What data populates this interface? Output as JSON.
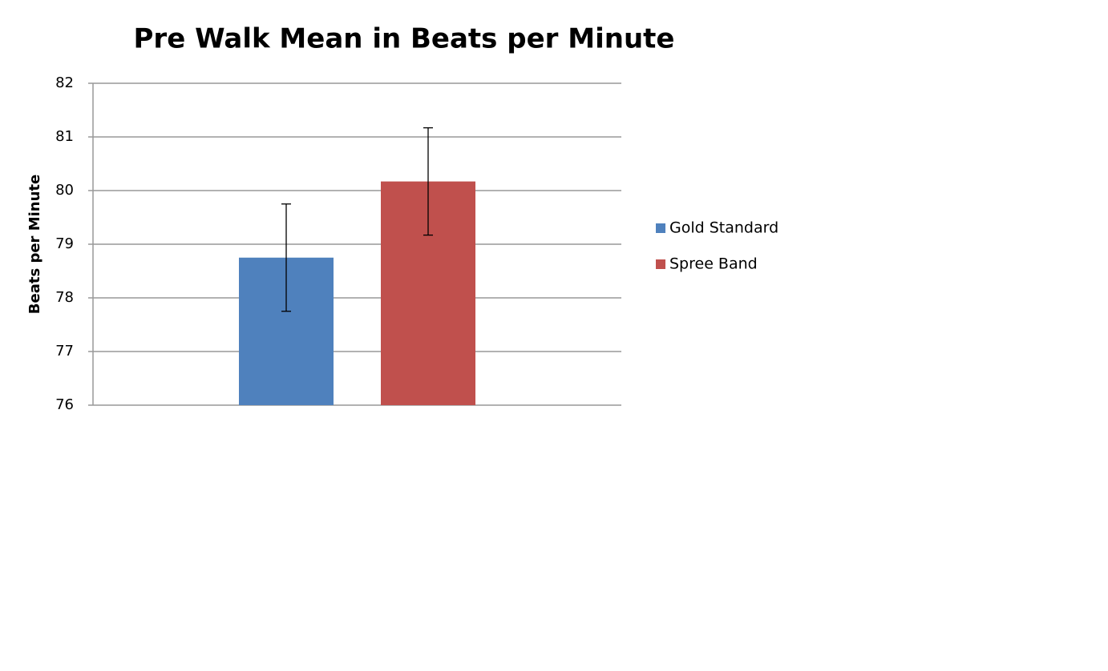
{
  "chart_data": {
    "type": "bar",
    "title": "Pre Walk Mean in Beats per Minute",
    "y_label": "Beats per Minute",
    "categories": [
      null
    ],
    "series": [
      {
        "name": "Gold Standard",
        "color": "#4f81bd",
        "values": [
          78.75
        ],
        "errors": [
          1
        ]
      },
      {
        "name": "Spree Band",
        "color": "#c0504d",
        "values": [
          80.17
        ],
        "errors": [
          1
        ]
      }
    ],
    "ylim": [
      76,
      82
    ],
    "yticks": [
      76,
      77,
      78,
      79,
      80,
      81,
      82
    ],
    "grid": true,
    "legend": "right"
  }
}
